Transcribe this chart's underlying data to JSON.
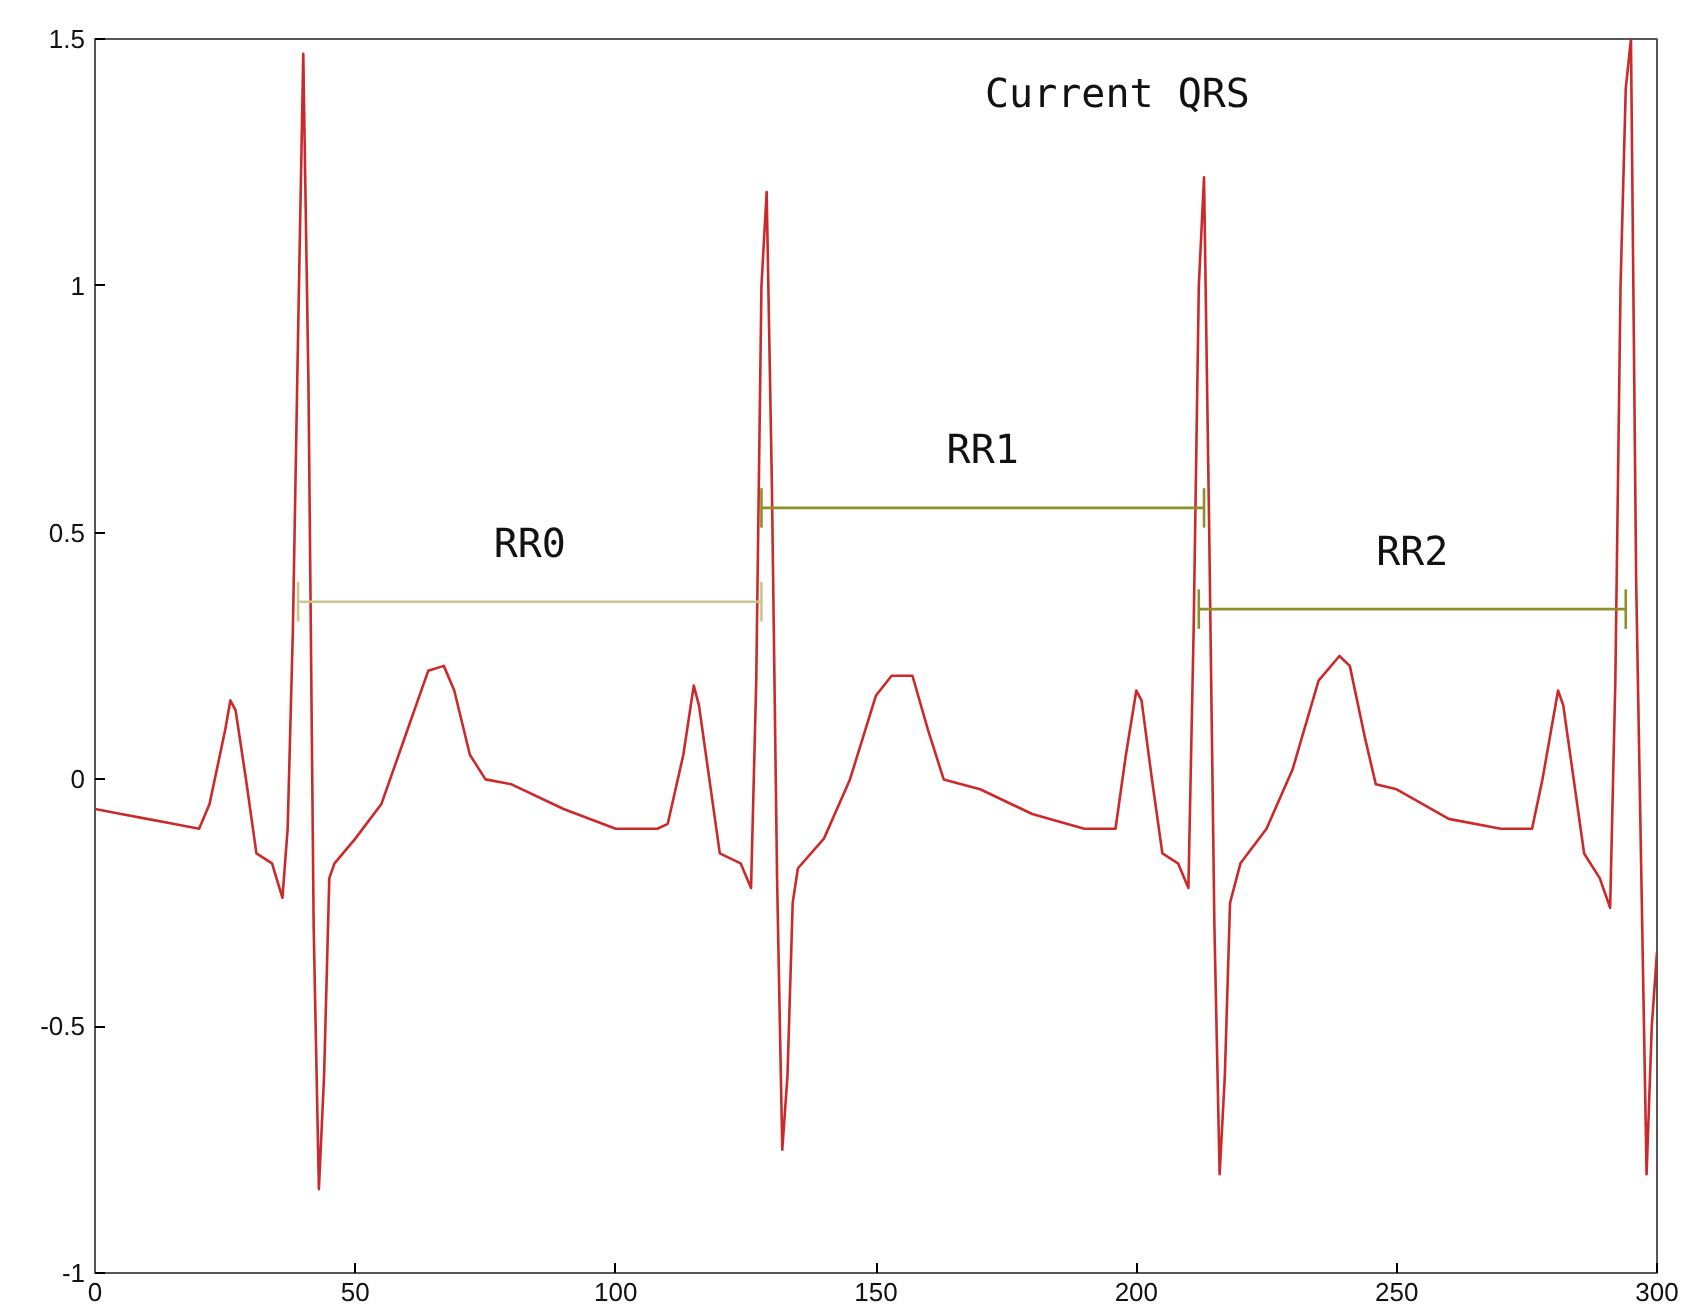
{
  "chart_data": {
    "type": "line",
    "xlim": [
      0,
      300
    ],
    "ylim": [
      -1,
      1.5
    ],
    "xticks": [
      0,
      50,
      100,
      150,
      200,
      250,
      300
    ],
    "yticks": [
      -1,
      -0.5,
      0,
      0.5,
      1,
      1.5
    ],
    "grid": false,
    "legend": false,
    "marker": "none",
    "line_style": "solid",
    "annotations": [
      "Current QRS"
    ],
    "series": [
      {
        "color": "#cc2a2a",
        "x": [
          0,
          5,
          10,
          15,
          20,
          22,
          25,
          26,
          27,
          29,
          31,
          34,
          36,
          37,
          38,
          39,
          40,
          41,
          42,
          43,
          44,
          45,
          46,
          50,
          55,
          60,
          64,
          67,
          69,
          72,
          75,
          80,
          90,
          100,
          108,
          110,
          113,
          115,
          116,
          118,
          120,
          124,
          126,
          127,
          128,
          129,
          130,
          131,
          132,
          133,
          134,
          135,
          140,
          145,
          150,
          153,
          157,
          160,
          163,
          170,
          180,
          190,
          196,
          198,
          200,
          201,
          203,
          205,
          208,
          210,
          211,
          212,
          213,
          214,
          215,
          216,
          217,
          218,
          220,
          225,
          230,
          235,
          239,
          241,
          244,
          246,
          250,
          260,
          270,
          276,
          278,
          281,
          282,
          284,
          286,
          289,
          291,
          292,
          293,
          294,
          295,
          296,
          297,
          298,
          299,
          300
        ],
        "values": [
          -0.06,
          -0.07,
          -0.08,
          -0.09,
          -0.1,
          -0.05,
          0.1,
          0.16,
          0.14,
          0.0,
          -0.15,
          -0.17,
          -0.24,
          -0.1,
          0.3,
          0.9,
          1.47,
          0.8,
          -0.3,
          -0.83,
          -0.6,
          -0.2,
          -0.17,
          -0.12,
          -0.05,
          0.1,
          0.22,
          0.23,
          0.18,
          0.05,
          0.0,
          -0.01,
          -0.06,
          -0.1,
          -0.1,
          -0.09,
          0.05,
          0.19,
          0.15,
          0.0,
          -0.15,
          -0.17,
          -0.22,
          0.2,
          1.0,
          1.19,
          0.6,
          -0.2,
          -0.75,
          -0.6,
          -0.25,
          -0.18,
          -0.12,
          0.0,
          0.17,
          0.21,
          0.21,
          0.1,
          0.0,
          -0.02,
          -0.07,
          -0.1,
          -0.1,
          0.05,
          0.18,
          0.16,
          0.0,
          -0.15,
          -0.17,
          -0.22,
          0.3,
          1.0,
          1.22,
          0.5,
          -0.3,
          -0.8,
          -0.6,
          -0.25,
          -0.17,
          -0.1,
          0.02,
          0.2,
          0.25,
          0.23,
          0.08,
          -0.01,
          -0.02,
          -0.08,
          -0.1,
          -0.1,
          0.0,
          0.18,
          0.15,
          0.0,
          -0.15,
          -0.2,
          -0.26,
          0.2,
          1.0,
          1.4,
          1.5,
          0.4,
          -0.2,
          -0.8,
          -0.5,
          -0.35
        ]
      },
      {
        "name": "RR0",
        "color": "#c8c88c",
        "x": [
          39,
          128
        ],
        "values": [
          0.36,
          0.36
        ],
        "errors": [
          0.04,
          0.04
        ]
      },
      {
        "name": "RR1",
        "color": "#8f8f2a",
        "x": [
          128,
          213
        ],
        "values": [
          0.55,
          0.55
        ],
        "errors": [
          0.04,
          0.04
        ]
      },
      {
        "name": "RR2",
        "color": "#8f8f2a",
        "x": [
          212,
          294
        ],
        "values": [
          0.345,
          0.345
        ],
        "errors": [
          0.04,
          0.04
        ]
      }
    ]
  }
}
